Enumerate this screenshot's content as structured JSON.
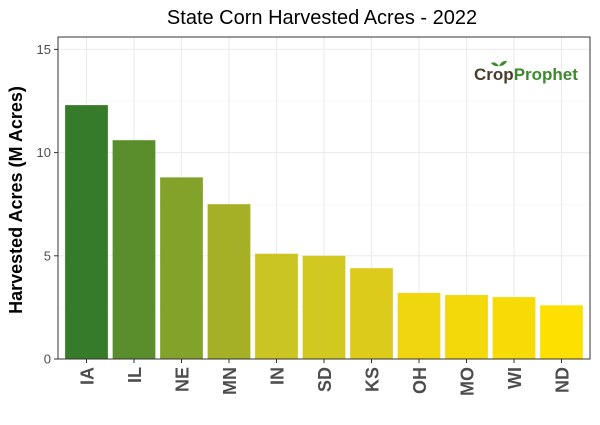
{
  "chart_data": {
    "type": "bar",
    "title": "State Corn Harvested Acres - 2022",
    "xlabel": "",
    "ylabel": "Harvested Acres (M Acres)",
    "categories": [
      "IA",
      "IL",
      "NE",
      "MN",
      "IN",
      "SD",
      "KS",
      "OH",
      "MO",
      "WI",
      "ND"
    ],
    "values": [
      12.3,
      10.6,
      8.8,
      7.5,
      5.1,
      5.0,
      4.4,
      3.2,
      3.1,
      3.0,
      2.6
    ],
    "ylim": [
      0,
      15.6
    ],
    "yticks": [
      0,
      5,
      10,
      15
    ],
    "grid": true,
    "legend": "none",
    "bar_colors": [
      "#367B2A",
      "#5A8D2C",
      "#83A22A",
      "#A6B027",
      "#CAC523",
      "#D2C920",
      "#DCCB1B",
      "#F0D60E",
      "#F4D90A",
      "#F6DB07",
      "#FDE000"
    ]
  },
  "logo": {
    "text_part1": "Cr",
    "text_part2": "p",
    "text_part3": "Prophet",
    "color_dark": "#4A3B2A",
    "color_green": "#3C8A2E"
  },
  "colors": {
    "grid_major": "#EBEBEB",
    "grid_minor": "#F5F5F5",
    "panel_border": "#333333",
    "tick_text": "#4D4D4D",
    "axis_title": "#000000"
  }
}
